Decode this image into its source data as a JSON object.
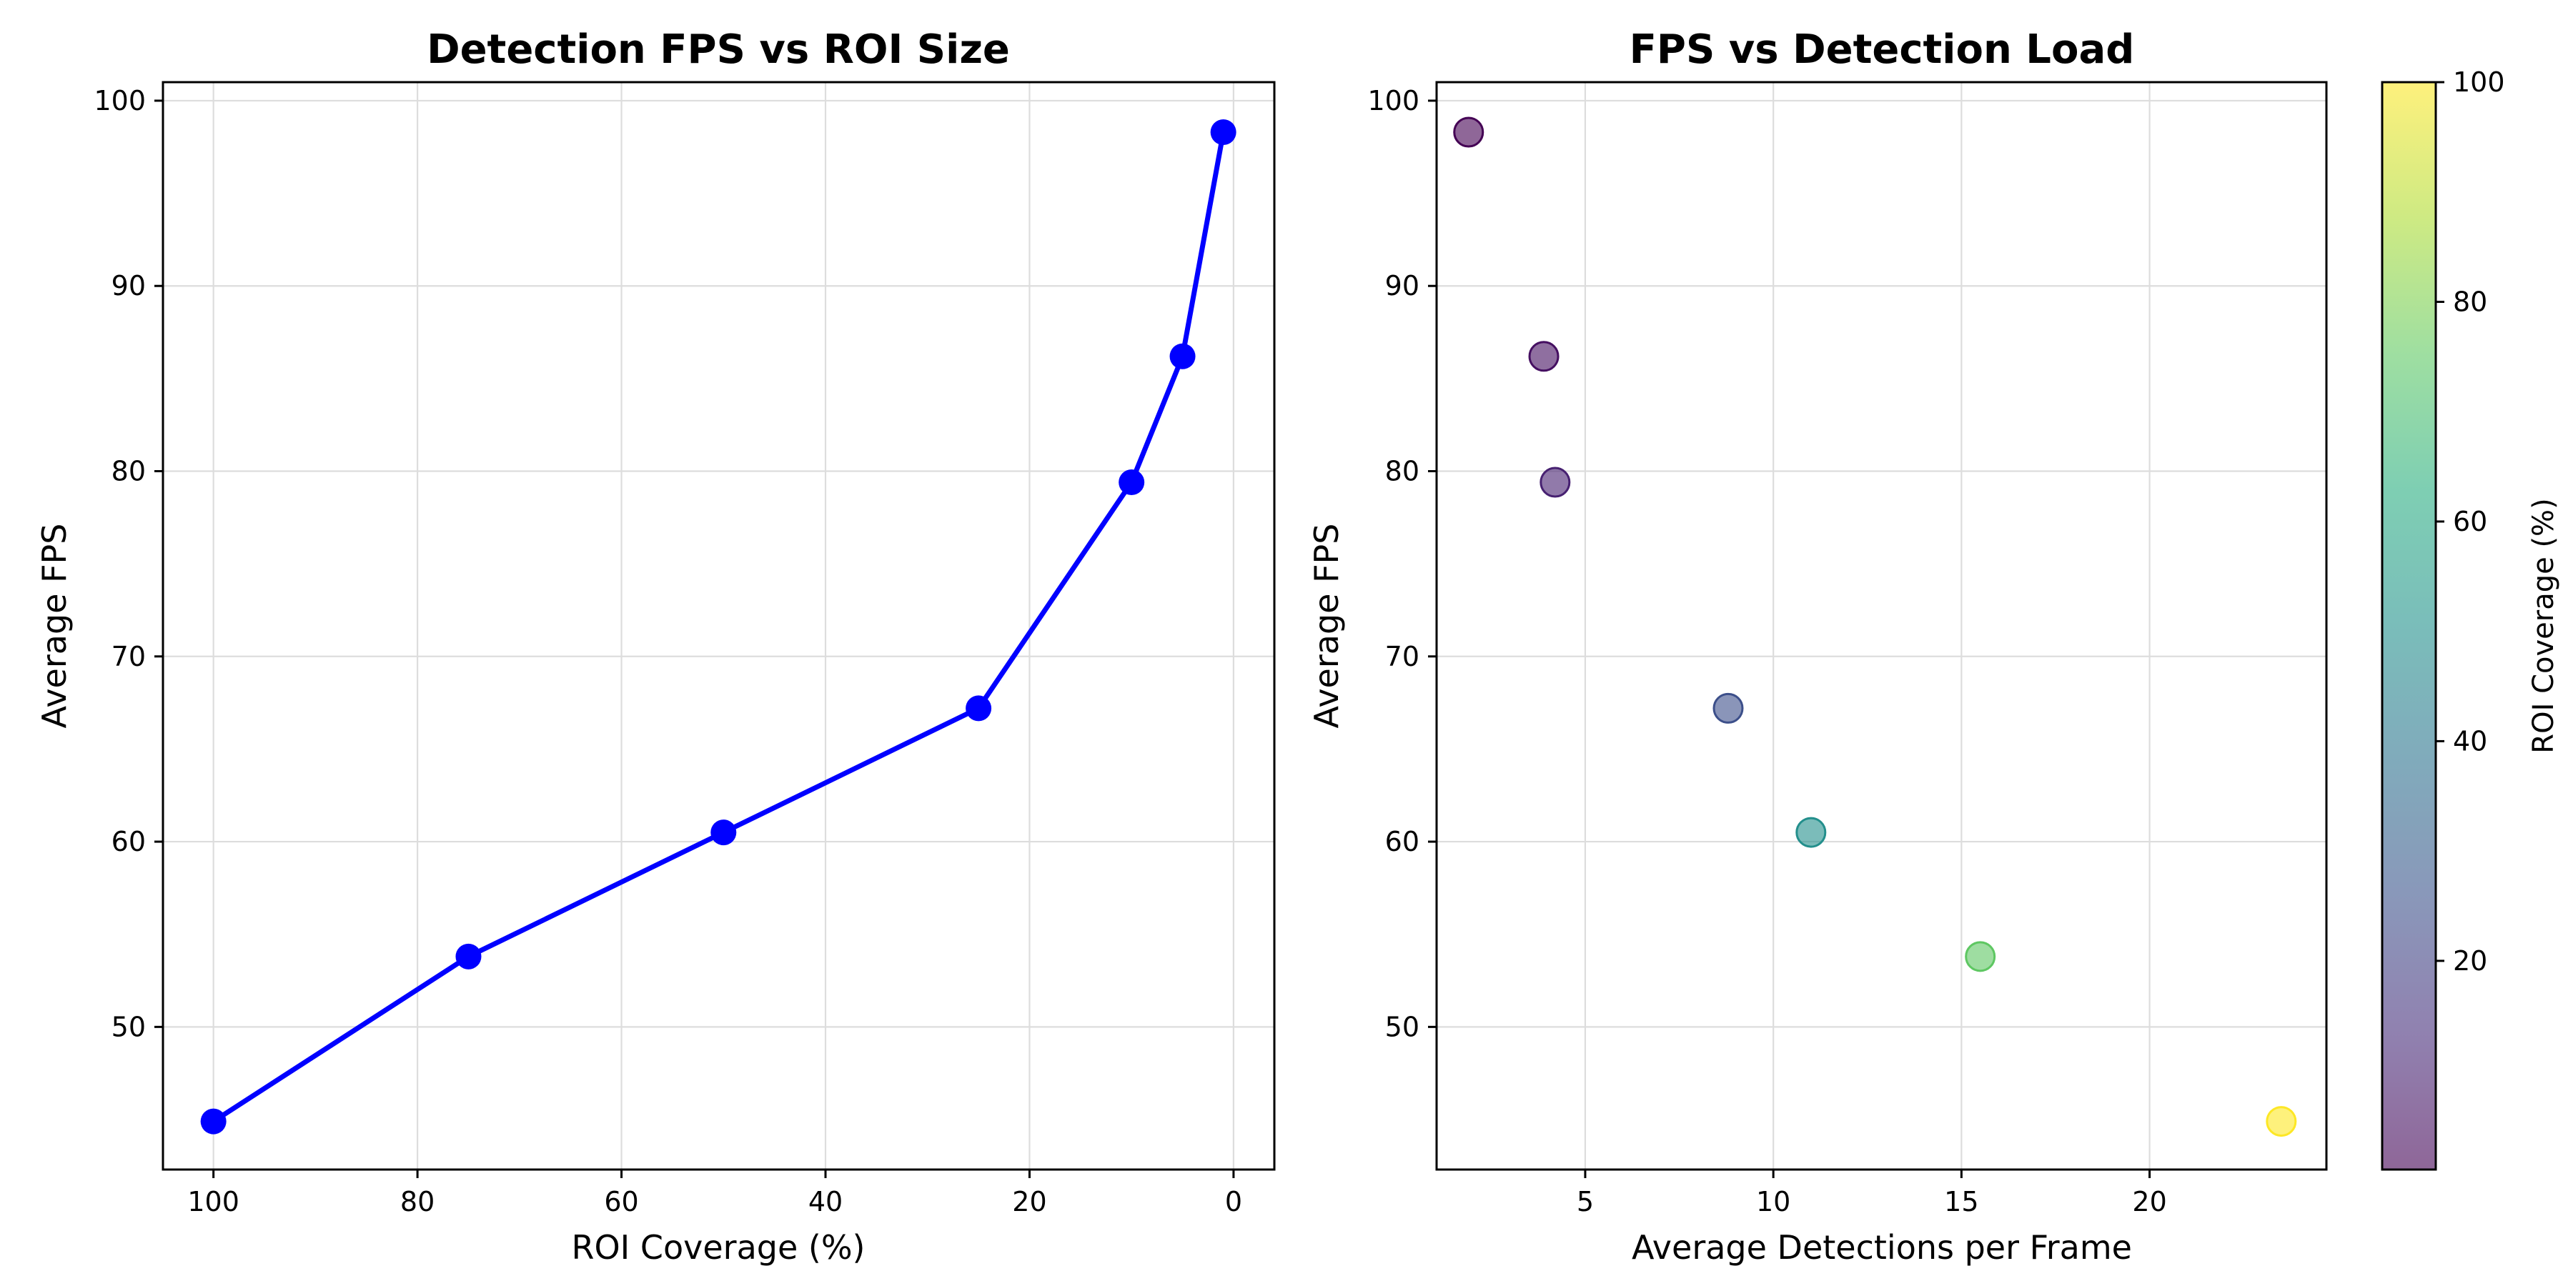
{
  "chart_data": [
    {
      "type": "line",
      "title": "Detection FPS vs ROI Size",
      "xlabel": "ROI Coverage (%)",
      "ylabel": "Average FPS",
      "x_inverted": true,
      "xlim": [
        104.95,
        -4
      ],
      "ylim": [
        42.3,
        101
      ],
      "xticks": [
        100,
        80,
        60,
        40,
        20,
        0
      ],
      "yticks": [
        50,
        60,
        70,
        80,
        90,
        100
      ],
      "grid": true,
      "color": "#0000ff",
      "series": [
        {
          "x": [
            100,
            75,
            50,
            25,
            10,
            5,
            1
          ],
          "y": [
            44.9,
            53.8,
            60.5,
            67.2,
            79.4,
            86.2,
            98.3
          ]
        }
      ]
    },
    {
      "type": "scatter",
      "title": "FPS vs Detection Load",
      "xlabel": "Average Detections per Frame",
      "ylabel": "Average FPS",
      "xlim": [
        1.05,
        24.7
      ],
      "ylim": [
        42.3,
        101
      ],
      "xticks": [
        5,
        10,
        15,
        20
      ],
      "yticks": [
        50,
        60,
        70,
        80,
        90,
        100
      ],
      "grid": true,
      "colormap": "viridis",
      "alpha": 0.6,
      "colorbar": {
        "label": "ROI Coverage (%)",
        "range": [
          1,
          100
        ],
        "ticks": [
          20,
          40,
          60,
          80,
          100
        ]
      },
      "points": [
        {
          "x": 1.9,
          "y": 98.3,
          "roi": 1
        },
        {
          "x": 3.9,
          "y": 86.2,
          "roi": 5
        },
        {
          "x": 4.2,
          "y": 79.4,
          "roi": 10
        },
        {
          "x": 8.8,
          "y": 67.2,
          "roi": 25
        },
        {
          "x": 11.0,
          "y": 60.5,
          "roi": 50
        },
        {
          "x": 15.5,
          "y": 53.8,
          "roi": 75
        },
        {
          "x": 23.5,
          "y": 44.9,
          "roi": 100
        }
      ]
    }
  ]
}
